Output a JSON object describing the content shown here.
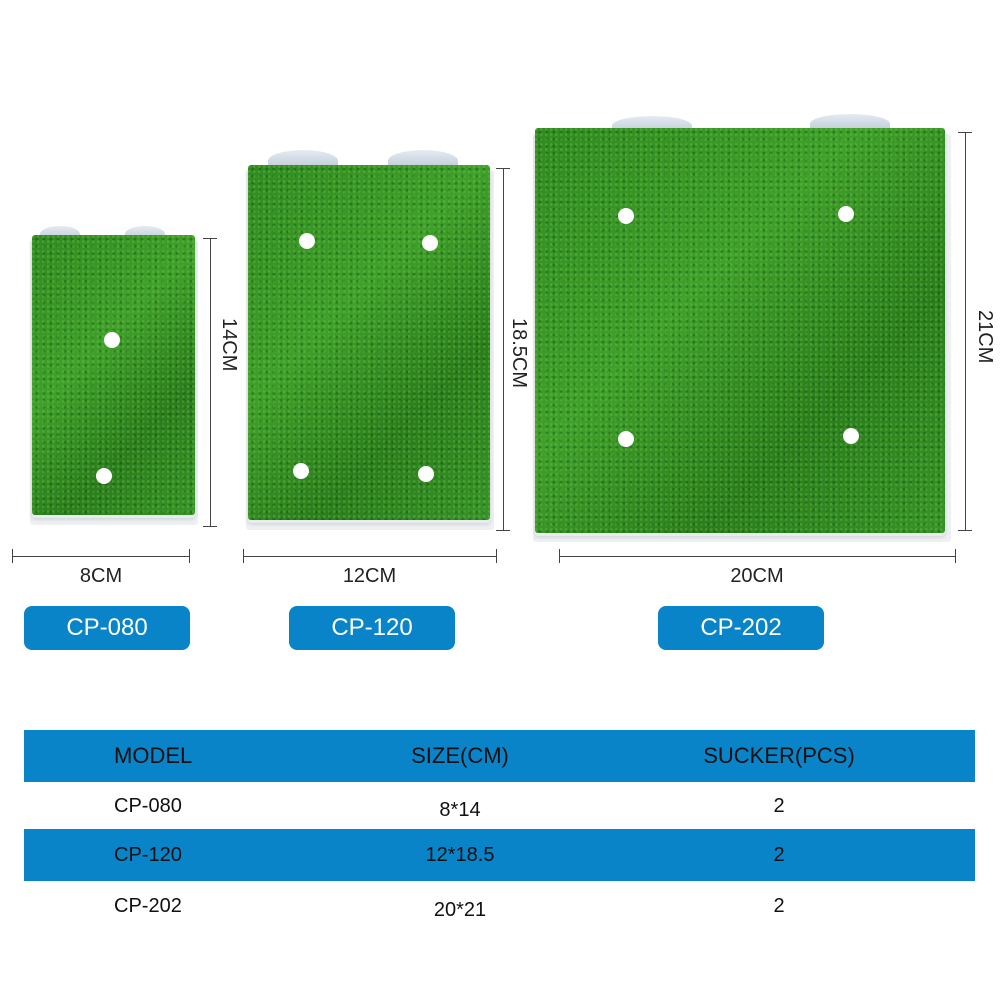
{
  "products": [
    {
      "model": "CP-080",
      "width_label": "8CM",
      "height_label": "14CM"
    },
    {
      "model": "CP-120",
      "width_label": "12CM",
      "height_label": "18.5CM"
    },
    {
      "model": "CP-202",
      "width_label": "20CM",
      "height_label": "21CM"
    }
  ],
  "table": {
    "headers": [
      "MODEL",
      "SIZE(CM)",
      "SUCKER(PCS)"
    ],
    "rows": [
      [
        "CP-080",
        "8*14",
        "2"
      ],
      [
        "CP-120",
        "12*18.5",
        "2"
      ],
      [
        "CP-202",
        "20*21",
        "2"
      ]
    ]
  },
  "colors": {
    "accent": "#0a84c8",
    "grass": "#35922a"
  }
}
